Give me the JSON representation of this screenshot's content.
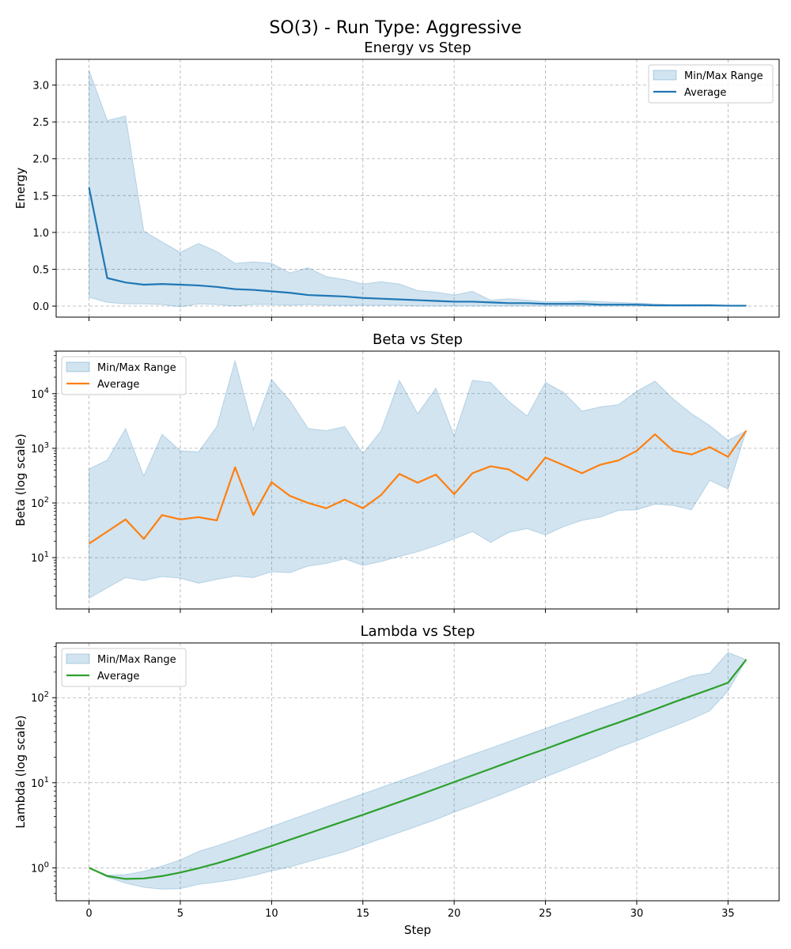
{
  "figure": {
    "suptitle": "SO(3) - Run Type: Aggressive"
  },
  "chart_data": [
    {
      "type": "line",
      "title": "Energy vs Step",
      "xlabel": "",
      "ylabel": "Energy",
      "yscale": "linear",
      "xlim": [
        -1.8,
        37.8
      ],
      "ylim": [
        -0.15,
        3.35
      ],
      "xticks": [
        0,
        5,
        10,
        15,
        20,
        25,
        30,
        35
      ],
      "show_xtick_labels": false,
      "yticks": [
        0.0,
        0.5,
        1.0,
        1.5,
        2.0,
        2.5,
        3.0
      ],
      "ytick_labels": [
        "0.0",
        "0.5",
        "1.0",
        "1.5",
        "2.0",
        "2.5",
        "3.0"
      ],
      "grid": true,
      "legend": {
        "placement": "upper right",
        "entries": [
          "Min/Max Range",
          "Average"
        ]
      },
      "colors": {
        "line": "#1f77b4",
        "band": "#1f77b4"
      },
      "x": [
        0,
        1,
        2,
        3,
        4,
        5,
        6,
        7,
        8,
        9,
        10,
        11,
        12,
        13,
        14,
        15,
        16,
        17,
        18,
        19,
        20,
        21,
        22,
        23,
        24,
        25,
        26,
        27,
        28,
        29,
        30,
        31,
        32,
        33,
        34,
        35,
        36
      ],
      "series": [
        {
          "name": "Average",
          "role": "line",
          "values": [
            1.61,
            0.38,
            0.32,
            0.29,
            0.3,
            0.29,
            0.28,
            0.26,
            0.23,
            0.22,
            0.2,
            0.18,
            0.15,
            0.14,
            0.13,
            0.11,
            0.1,
            0.09,
            0.08,
            0.07,
            0.06,
            0.06,
            0.05,
            0.04,
            0.04,
            0.03,
            0.03,
            0.03,
            0.02,
            0.02,
            0.02,
            0.01,
            0.01,
            0.01,
            0.01,
            0.005,
            0.005
          ]
        },
        {
          "name": "Min/Max Range",
          "role": "band",
          "min": [
            0.12,
            0.05,
            0.03,
            0.03,
            0.02,
            -0.01,
            0.03,
            0.02,
            0.0,
            0.02,
            0.02,
            0.01,
            0.02,
            0.01,
            0.01,
            0.01,
            0.01,
            0.01,
            0.0,
            0.0,
            0.0,
            0.0,
            0.0,
            0.0,
            0.0,
            0.0,
            0.0,
            0.0,
            0.0,
            0.0,
            0.0,
            0.0,
            0.0,
            0.0,
            0.0,
            0.0,
            0.0
          ],
          "max": [
            3.2,
            2.52,
            2.58,
            1.02,
            0.87,
            0.73,
            0.85,
            0.74,
            0.58,
            0.6,
            0.58,
            0.45,
            0.52,
            0.4,
            0.36,
            0.3,
            0.33,
            0.3,
            0.21,
            0.19,
            0.15,
            0.2,
            0.08,
            0.1,
            0.08,
            0.06,
            0.06,
            0.07,
            0.06,
            0.05,
            0.04,
            0.03,
            0.02,
            0.02,
            0.02,
            0.01,
            0.01
          ]
        }
      ]
    },
    {
      "type": "line",
      "title": "Beta vs Step",
      "xlabel": "",
      "ylabel": "Beta (log scale)",
      "yscale": "log",
      "xlim": [
        -1.8,
        37.8
      ],
      "ylim": [
        1.15,
        60000
      ],
      "xticks": [
        0,
        5,
        10,
        15,
        20,
        25,
        30,
        35
      ],
      "show_xtick_labels": false,
      "yticks": [
        10,
        100,
        1000,
        10000
      ],
      "ytick_labels": [
        [
          "10",
          "1"
        ],
        [
          "10",
          "2"
        ],
        [
          "10",
          "3"
        ],
        [
          "10",
          "4"
        ]
      ],
      "grid": true,
      "legend": {
        "placement": "upper left",
        "entries": [
          "Min/Max Range",
          "Average"
        ]
      },
      "colors": {
        "line": "#ff7f0e",
        "band": "#1f77b4"
      },
      "x": [
        0,
        1,
        2,
        3,
        4,
        5,
        6,
        7,
        8,
        9,
        10,
        11,
        12,
        13,
        14,
        15,
        16,
        17,
        18,
        19,
        20,
        21,
        22,
        23,
        24,
        25,
        26,
        27,
        28,
        29,
        30,
        31,
        32,
        33,
        34,
        35,
        36
      ],
      "series": [
        {
          "name": "Average",
          "role": "line",
          "values": [
            18,
            30,
            50,
            22,
            60,
            50,
            55,
            48,
            450,
            60,
            240,
            135,
            100,
            80,
            115,
            80,
            140,
            340,
            235,
            330,
            145,
            350,
            470,
            410,
            260,
            680,
            490,
            350,
            500,
            600,
            900,
            1800,
            900,
            770,
            1050,
            700,
            2100
          ]
        },
        {
          "name": "Min/Max Range",
          "role": "band",
          "min": [
            1.8,
            2.8,
            4.3,
            3.8,
            4.5,
            4.2,
            3.4,
            4.0,
            4.6,
            4.3,
            5.5,
            5.3,
            7.0,
            7.8,
            9.5,
            7.2,
            8.5,
            10.5,
            12.8,
            16.5,
            22,
            30,
            19,
            29,
            34,
            26,
            37,
            48,
            55,
            73,
            75,
            95,
            90,
            75,
            260,
            180,
            2100
          ],
          "max": [
            420,
            610,
            2300,
            310,
            1800,
            900,
            860,
            2500,
            40000,
            2200,
            18000,
            7500,
            2300,
            2100,
            2500,
            800,
            2100,
            17500,
            4300,
            12600,
            1700,
            17500,
            16000,
            7200,
            3900,
            16000,
            10500,
            4800,
            5700,
            6300,
            11000,
            17000,
            8000,
            4300,
            2600,
            1400,
            2100
          ]
        }
      ]
    },
    {
      "type": "line",
      "title": "Lambda vs Step",
      "xlabel": "Step",
      "ylabel": "Lambda (log scale)",
      "yscale": "log",
      "xlim": [
        -1.8,
        37.8
      ],
      "ylim": [
        0.41,
        440
      ],
      "xticks": [
        0,
        5,
        10,
        15,
        20,
        25,
        30,
        35
      ],
      "show_xtick_labels": true,
      "xtick_labels": [
        "0",
        "5",
        "10",
        "15",
        "20",
        "25",
        "30",
        "35"
      ],
      "yticks": [
        1,
        10,
        100
      ],
      "ytick_labels": [
        [
          "10",
          "0"
        ],
        [
          "10",
          "1"
        ],
        [
          "10",
          "2"
        ]
      ],
      "grid": true,
      "legend": {
        "placement": "upper left",
        "entries": [
          "Min/Max Range",
          "Average"
        ]
      },
      "colors": {
        "line": "#2ca02c",
        "band": "#1f77b4"
      },
      "x": [
        0,
        1,
        2,
        3,
        4,
        5,
        6,
        7,
        8,
        9,
        10,
        11,
        12,
        13,
        14,
        15,
        16,
        17,
        18,
        19,
        20,
        21,
        22,
        23,
        24,
        25,
        26,
        27,
        28,
        29,
        30,
        31,
        32,
        33,
        34,
        35,
        36
      ],
      "series": [
        {
          "name": "Average",
          "role": "line",
          "values": [
            1.0,
            0.8,
            0.74,
            0.75,
            0.8,
            0.88,
            0.99,
            1.13,
            1.31,
            1.54,
            1.81,
            2.14,
            2.53,
            3.0,
            3.55,
            4.2,
            5.0,
            5.95,
            7.1,
            8.5,
            10.2,
            12.2,
            14.6,
            17.5,
            21,
            25,
            30,
            36,
            43,
            51,
            61,
            73,
            88,
            105,
            125,
            150,
            280
          ]
        },
        {
          "name": "Min/Max Range",
          "role": "band",
          "min": [
            1.0,
            0.78,
            0.66,
            0.59,
            0.56,
            0.57,
            0.64,
            0.68,
            0.73,
            0.81,
            0.92,
            1.02,
            1.18,
            1.35,
            1.55,
            1.85,
            2.2,
            2.6,
            3.1,
            3.7,
            4.5,
            5.4,
            6.5,
            7.9,
            9.6,
            11.7,
            14.2,
            17.3,
            21,
            26,
            31,
            38,
            46,
            56,
            70,
            120,
            280
          ],
          "max": [
            1.0,
            0.82,
            0.83,
            0.91,
            1.05,
            1.24,
            1.56,
            1.81,
            2.15,
            2.55,
            3.05,
            3.65,
            4.35,
            5.2,
            6.2,
            7.4,
            8.8,
            10.5,
            12.5,
            15,
            18,
            21.5,
            25.5,
            30.5,
            36.5,
            43.5,
            52,
            62,
            74,
            88,
            105,
            125,
            150,
            180,
            195,
            340,
            280
          ]
        }
      ]
    }
  ]
}
